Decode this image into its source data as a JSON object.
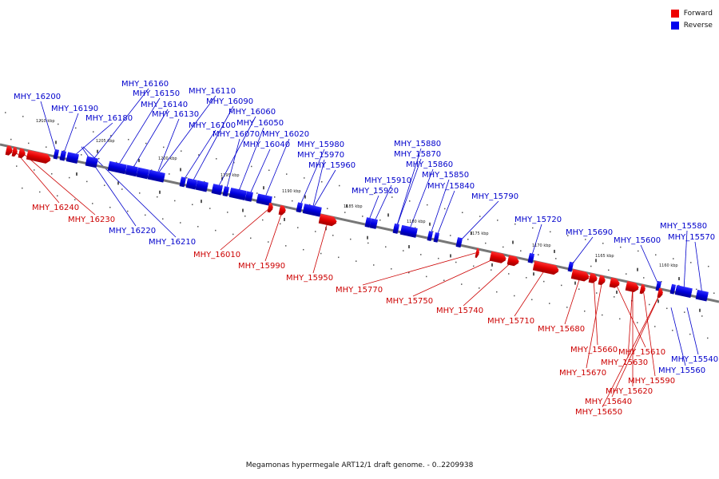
{
  "caption": "Megamonas hypermegale ART12/1 draft genome. - 0..2209938",
  "legend": [
    {
      "label": "Forward",
      "color": "#ee0000"
    },
    {
      "label": "Reverse",
      "color": "#0000ee"
    }
  ],
  "ticks": [
    "1210 kbp",
    "1205 kbp",
    "1200 kbp",
    "1195 kbp",
    "1190 kbp",
    "1185 kbp",
    "1180 kbp",
    "1175 kbp",
    "1170 kbp",
    "1165 kbp",
    "1160 kbp"
  ],
  "reverse_labels": [
    "MHY_16200",
    "MHY_16190",
    "MHY_16180",
    "MHY_16160",
    "MHY_16150",
    "MHY_16140",
    "MHY_16130",
    "MHY_16110",
    "MHY_16090",
    "MHY_16100",
    "MHY_16060",
    "MHY_16070",
    "MHY_16050",
    "MHY_16020",
    "MHY_16040",
    "MHY_15980",
    "MHY_15970",
    "MHY_15960",
    "MHY_15880",
    "MHY_15870",
    "MHY_15860",
    "MHY_15910",
    "MHY_15920",
    "MHY_15850",
    "MHY_15840",
    "MHY_15790",
    "MHY_15720",
    "MHY_15690",
    "MHY_15600",
    "MHY_15580",
    "MHY_15570",
    "MHY_16220",
    "MHY_16210",
    "MHY_15540",
    "MHY_15560"
  ],
  "forward_labels": [
    "MHY_16240",
    "MHY_16230",
    "MHY_16010",
    "MHY_15990",
    "MHY_15950",
    "MHY_15770",
    "MHY_15750",
    "MHY_15740",
    "MHY_15710",
    "MHY_15680",
    "MHY_15660",
    "MHY_15610",
    "MHY_15670",
    "MHY_15630",
    "MHY_15590",
    "MHY_15620",
    "MHY_15640",
    "MHY_15650"
  ]
}
